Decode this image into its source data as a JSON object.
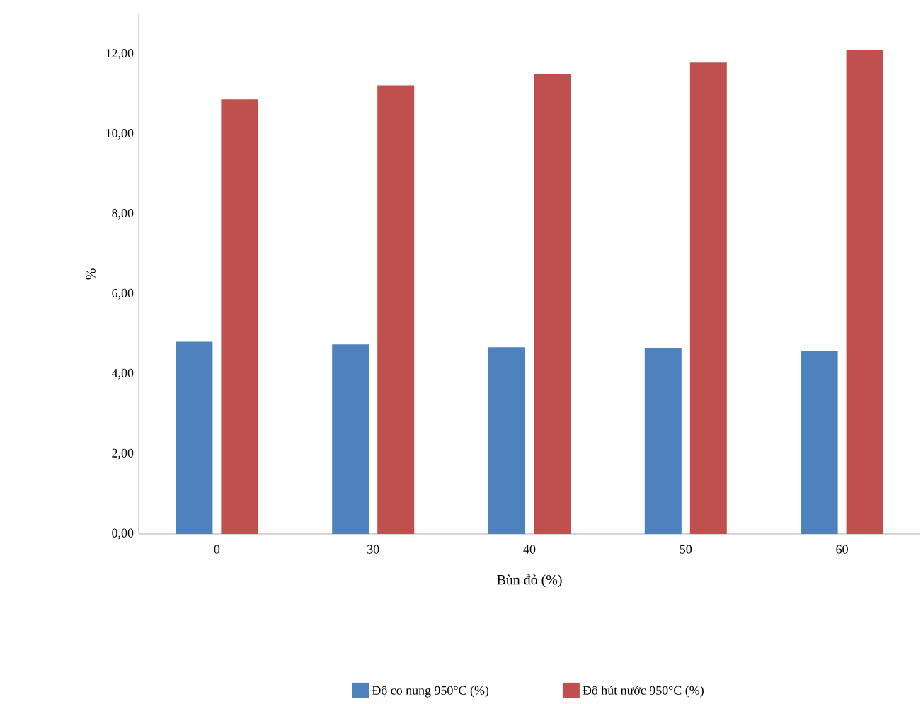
{
  "chart_data": {
    "type": "bar",
    "xlabel": "Bùn đỏ (%)",
    "ylabel": "%",
    "categories": [
      "0",
      "30",
      "40",
      "50",
      "60"
    ],
    "series": [
      {
        "name": "Độ co nung 950°C (%)",
        "color": "#4f81bd",
        "values": [
          4.81,
          4.74,
          4.67,
          4.64,
          4.57
        ]
      },
      {
        "name": "Độ hút nước 950°C (%)",
        "color": "#c0504d",
        "values": [
          10.87,
          11.22,
          11.5,
          11.79,
          12.1
        ]
      }
    ],
    "ylim": [
      0,
      13
    ],
    "yticks": [
      {
        "value": 0,
        "label": "0,00"
      },
      {
        "value": 2,
        "label": "2,00"
      },
      {
        "value": 4,
        "label": "4,00"
      },
      {
        "value": 6,
        "label": "6,00"
      },
      {
        "value": 8,
        "label": "8,00"
      },
      {
        "value": 10,
        "label": "10,00"
      },
      {
        "value": 12,
        "label": "12,00"
      }
    ],
    "legend": "bottom"
  }
}
